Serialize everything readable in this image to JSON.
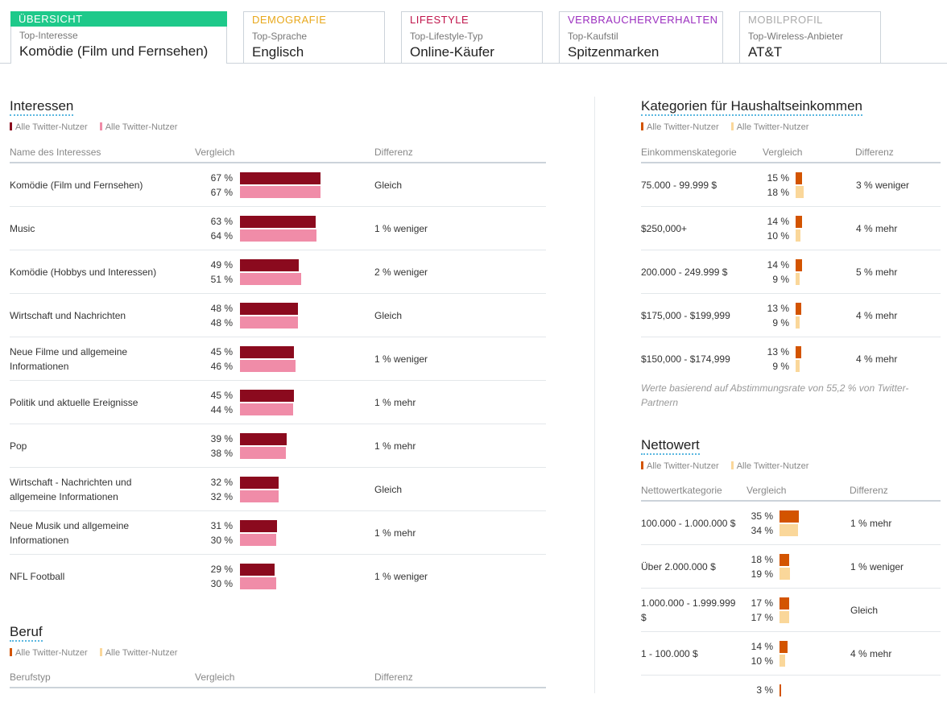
{
  "tabs": [
    {
      "title": "ÜBERSICHT",
      "sub": "Top-Interesse",
      "value": "Komödie (Film und Fernsehen)",
      "color": "#ffffff"
    },
    {
      "title": "DEMOGRAFIE",
      "sub": "Top-Sprache",
      "value": "Englisch",
      "color": "#e8a81c"
    },
    {
      "title": "LIFESTYLE",
      "sub": "Top-Lifestyle-Typ",
      "value": "Online-Käufer",
      "color": "#c0154b"
    },
    {
      "title": "VERBRAUCHERVERHALTEN",
      "sub": "Top-Kaufstil",
      "value": "Spitzenmarken",
      "color": "#9b2fbf"
    },
    {
      "title": "MOBILPROFIL",
      "sub": "Top-Wireless-Anbieter",
      "value": "AT&T",
      "color": "#aaaaaa"
    }
  ],
  "interests": {
    "title": "Interessen",
    "legend": [
      "Alle Twitter-Nutzer",
      "Alle Twitter-Nutzer"
    ],
    "colors": [
      "#8b0a1e",
      "#f08ca8"
    ],
    "headers": [
      "Name des Interesses",
      "Vergleich",
      "Differenz"
    ],
    "rows": [
      {
        "name": "Komödie (Film und Fernsehen)",
        "a": 67,
        "b": 67,
        "a_label": "67 %",
        "b_label": "67 %",
        "diff": "Gleich"
      },
      {
        "name": "Music",
        "a": 63,
        "b": 64,
        "a_label": "63 %",
        "b_label": "64 %",
        "diff": "1 % weniger"
      },
      {
        "name": "Komödie (Hobbys und Interessen)",
        "a": 49,
        "b": 51,
        "a_label": "49 %",
        "b_label": "51 %",
        "diff": "2 % weniger"
      },
      {
        "name": "Wirtschaft und Nachrichten",
        "a": 48,
        "b": 48,
        "a_label": "48 %",
        "b_label": "48 %",
        "diff": "Gleich"
      },
      {
        "name": "Neue Filme und allgemeine Informationen",
        "a": 45,
        "b": 46,
        "a_label": "45 %",
        "b_label": "46 %",
        "diff": "1 % weniger"
      },
      {
        "name": "Politik und aktuelle Ereignisse",
        "a": 45,
        "b": 44,
        "a_label": "45 %",
        "b_label": "44 %",
        "diff": "1 % mehr"
      },
      {
        "name": "Pop",
        "a": 39,
        "b": 38,
        "a_label": "39 %",
        "b_label": "38 %",
        "diff": "1 % mehr"
      },
      {
        "name": "Wirtschaft - Nachrichten und allgemeine Informationen",
        "a": 32,
        "b": 32,
        "a_label": "32 %",
        "b_label": "32 %",
        "diff": "Gleich"
      },
      {
        "name": "Neue Musik und allgemeine Informationen",
        "a": 31,
        "b": 30,
        "a_label": "31 %",
        "b_label": "30 %",
        "diff": "1 % mehr"
      },
      {
        "name": "NFL Football",
        "a": 29,
        "b": 30,
        "a_label": "29 %",
        "b_label": "30 %",
        "diff": "1 % weniger"
      }
    ]
  },
  "beruf": {
    "title": "Beruf",
    "legend": [
      "Alle Twitter-Nutzer",
      "Alle Twitter-Nutzer"
    ],
    "colors": [
      "#d35400",
      "#fad79a"
    ],
    "headers": [
      "Berufstyp",
      "Vergleich",
      "Differenz"
    ]
  },
  "income": {
    "title": "Kategorien für Haushaltseinkommen",
    "legend": [
      "Alle Twitter-Nutzer",
      "Alle Twitter-Nutzer"
    ],
    "colors": [
      "#d35400",
      "#fad79a"
    ],
    "headers": [
      "Einkommenskategorie",
      "Vergleich",
      "Differenz"
    ],
    "rows": [
      {
        "name": "75.000 - 99.999 $",
        "a": 15,
        "b": 18,
        "a_label": "15 %",
        "b_label": "18 %",
        "diff": "3 % weniger"
      },
      {
        "name": "$250,000+",
        "a": 14,
        "b": 10,
        "a_label": "14 %",
        "b_label": "10 %",
        "diff": "4 % mehr"
      },
      {
        "name": "200.000 - 249.999 $",
        "a": 14,
        "b": 9,
        "a_label": "14 %",
        "b_label": "9 %",
        "diff": "5 % mehr"
      },
      {
        "name": "$175,000 - $199,999",
        "a": 13,
        "b": 9,
        "a_label": "13 %",
        "b_label": "9 %",
        "diff": "4 % mehr"
      },
      {
        "name": "$150,000 - $174,999",
        "a": 13,
        "b": 9,
        "a_label": "13 %",
        "b_label": "9 %",
        "diff": "4 % mehr"
      }
    ],
    "note": "Werte basierend auf Abstimmungsrate von 55,2 % von Twitter-Partnern"
  },
  "networth": {
    "title": "Nettowert",
    "legend": [
      "Alle Twitter-Nutzer",
      "Alle Twitter-Nutzer"
    ],
    "colors": [
      "#d35400",
      "#fad79a"
    ],
    "headers": [
      "Nettowertkategorie",
      "Vergleich",
      "Differenz"
    ],
    "rows": [
      {
        "name": "100.000 - 1.000.000 $",
        "a": 35,
        "b": 34,
        "a_label": "35 %",
        "b_label": "34 %",
        "diff": "1 % mehr"
      },
      {
        "name": "Über 2.000.000 $",
        "a": 18,
        "b": 19,
        "a_label": "18 %",
        "b_label": "19 %",
        "diff": "1 % weniger"
      },
      {
        "name": "1.000.000 - 1.999.999 $",
        "a": 17,
        "b": 17,
        "a_label": "17 %",
        "b_label": "17 %",
        "diff": "Gleich"
      },
      {
        "name": "1 - 100.000 $",
        "a": 14,
        "b": 10,
        "a_label": "14 %",
        "b_label": "10 %",
        "diff": "4 % mehr"
      },
      {
        "name": "",
        "a": 3,
        "b": null,
        "a_label": "3 %",
        "b_label": "",
        "diff": ""
      }
    ]
  }
}
